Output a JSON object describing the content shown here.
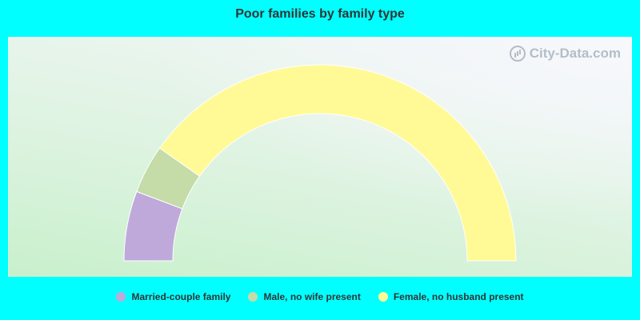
{
  "title": "Poor families by family type",
  "watermark": "City-Data.com",
  "chart_data": {
    "type": "pie",
    "style": "half-donut",
    "title": "Poor families by family type",
    "categories": [
      "Married-couple family",
      "Male, no wife present",
      "Female, no husband present"
    ],
    "values": [
      11.5,
      8.0,
      80.5
    ],
    "colors": [
      "#bfa9db",
      "#c5dba8",
      "#fffa96"
    ],
    "legend_position": "bottom"
  }
}
